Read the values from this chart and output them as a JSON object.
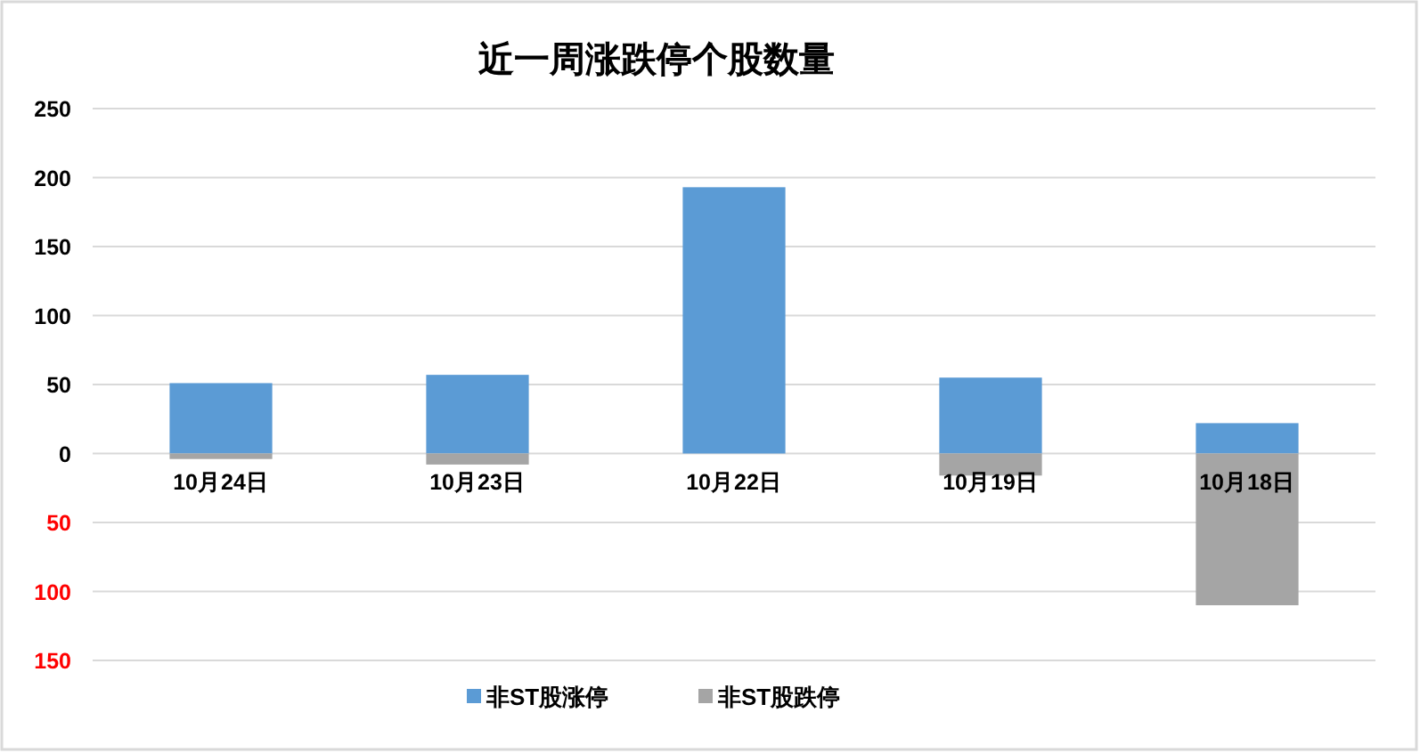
{
  "chart_data": {
    "type": "bar",
    "title": "近一周涨跌停个股数量",
    "categories": [
      "10月24日",
      "10月23日",
      "10月22日",
      "10月19日",
      "10月18日"
    ],
    "stacked": true,
    "series": [
      {
        "name": "非ST股涨停",
        "color": "#5b9bd5",
        "values": [
          51,
          57,
          193,
          55,
          22
        ]
      },
      {
        "name": "非ST股跌停",
        "color": "#a5a5a5",
        "values": [
          -4,
          -8,
          0,
          -16,
          -110
        ]
      }
    ],
    "ylim": [
      -150,
      250
    ],
    "yticks": [
      {
        "value": -150,
        "label": "150"
      },
      {
        "value": -100,
        "label": "100"
      },
      {
        "value": -50,
        "label": "50"
      },
      0,
      50,
      100,
      150,
      200,
      250
    ],
    "grid": "y",
    "legend": "bottom"
  }
}
